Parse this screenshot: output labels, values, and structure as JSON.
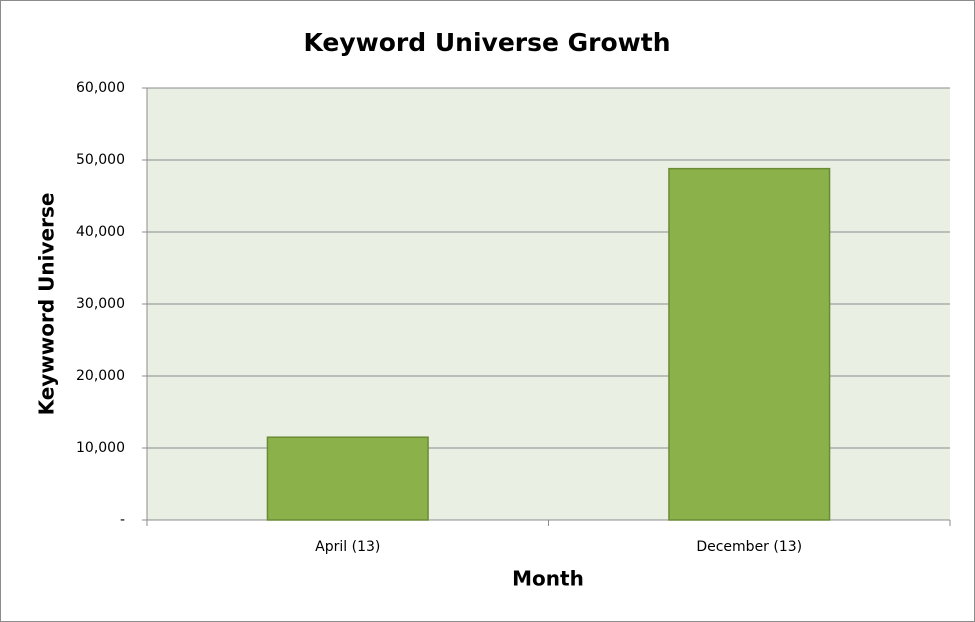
{
  "chart_data": {
    "type": "bar",
    "title": "Keyword Universe Growth",
    "x_label": "Month",
    "y_label": "Keywword Universe",
    "categories": [
      "April (13)",
      "December (13)"
    ],
    "values": [
      11500,
      48800
    ],
    "color": "#8bb14a",
    "plot_background": "#eaefe4",
    "ylim": [
      0,
      60000
    ],
    "yticks": [
      {
        "value": 0,
        "label": "-"
      },
      {
        "value": 10000,
        "label": "10,000"
      },
      {
        "value": 20000,
        "label": "20,000"
      },
      {
        "value": 30000,
        "label": "30,000"
      },
      {
        "value": 40000,
        "label": "40,000"
      },
      {
        "value": 50000,
        "label": "50,000"
      },
      {
        "value": 60000,
        "label": "60,000"
      }
    ],
    "grid": true
  }
}
